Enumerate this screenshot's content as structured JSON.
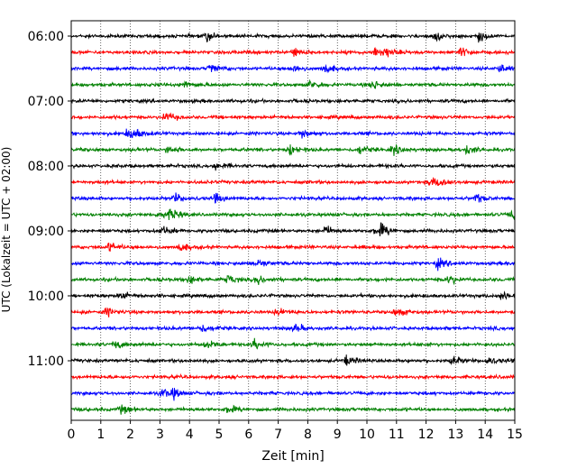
{
  "chart_data": {
    "type": "line",
    "title": "",
    "xlabel": "Zeit  [min]",
    "ylabel": "UTC (Lokalzeit = UTC + 02:00)",
    "xlim": [
      0,
      15
    ],
    "x_ticks": [
      "0",
      "1",
      "2",
      "3",
      "4",
      "5",
      "6",
      "7",
      "8",
      "9",
      "10",
      "11",
      "12",
      "13",
      "14",
      "15"
    ],
    "y_ticks": [
      "06:00",
      "07:00",
      "08:00",
      "09:00",
      "10:00",
      "11:00"
    ],
    "grid": "vertical dotted",
    "trace_interval_min": 15,
    "trace_colors": [
      "#000000",
      "#ff0000",
      "#0000ff",
      "#008000"
    ],
    "traces": [
      {
        "start": "06:00",
        "color": "#000000",
        "events": [
          4.6,
          12.3,
          13.8
        ]
      },
      {
        "start": "06:15",
        "color": "#ff0000",
        "events": [
          7.5,
          10.3,
          10.6,
          13.2
        ]
      },
      {
        "start": "06:30",
        "color": "#0000ff",
        "events": [
          4.7,
          7.5,
          8.6,
          14.5
        ]
      },
      {
        "start": "06:45",
        "color": "#008000",
        "events": [
          3.8,
          8.1,
          10.2
        ]
      },
      {
        "start": "07:00",
        "color": "#000000",
        "events": []
      },
      {
        "start": "07:15",
        "color": "#ff0000",
        "events": [
          3.2
        ]
      },
      {
        "start": "07:30",
        "color": "#0000ff",
        "events": [
          1.9,
          2.1,
          7.8
        ]
      },
      {
        "start": "07:45",
        "color": "#008000",
        "events": [
          3.3,
          7.4,
          9.8,
          10.9,
          13.4
        ]
      },
      {
        "start": "08:00",
        "color": "#000000",
        "events": [
          4.9
        ]
      },
      {
        "start": "08:15",
        "color": "#ff0000",
        "events": [
          12.2,
          12.5
        ]
      },
      {
        "start": "08:30",
        "color": "#0000ff",
        "events": [
          3.5,
          4.9,
          13.7
        ]
      },
      {
        "start": "08:45",
        "color": "#008000",
        "events": [
          3.0,
          3.4,
          14.9
        ]
      },
      {
        "start": "09:00",
        "color": "#000000",
        "events": [
          3.1,
          8.6,
          10.3,
          10.5
        ]
      },
      {
        "start": "09:15",
        "color": "#ff0000",
        "events": [
          1.3,
          3.7
        ]
      },
      {
        "start": "09:30",
        "color": "#0000ff",
        "events": [
          6.3,
          12.4
        ]
      },
      {
        "start": "09:45",
        "color": "#008000",
        "events": [
          4.0,
          5.3,
          6.3,
          12.8
        ]
      },
      {
        "start": "10:00",
        "color": "#000000",
        "events": [
          1.7,
          14.6
        ]
      },
      {
        "start": "10:15",
        "color": "#ff0000",
        "events": [
          1.2,
          7.0,
          11.0
        ]
      },
      {
        "start": "10:30",
        "color": "#0000ff",
        "events": [
          4.4,
          7.6
        ]
      },
      {
        "start": "10:45",
        "color": "#008000",
        "events": [
          1.5,
          4.6,
          6.2
        ]
      },
      {
        "start": "11:00",
        "color": "#000000",
        "events": [
          9.3,
          12.9,
          14.1
        ]
      },
      {
        "start": "11:15",
        "color": "#ff0000",
        "events": []
      },
      {
        "start": "11:30",
        "color": "#0000ff",
        "events": [
          3.1,
          3.5
        ]
      },
      {
        "start": "11:45",
        "color": "#008000",
        "events": [
          1.7,
          5.3
        ]
      }
    ]
  }
}
